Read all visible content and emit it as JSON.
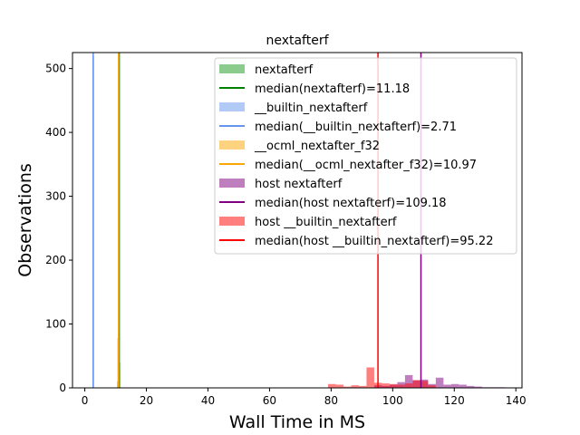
{
  "chart_data": {
    "type": "histogram",
    "title": "nextafterf",
    "xlabel": "Wall Time in MS",
    "ylabel": "Observations",
    "xlim": [
      -4,
      142
    ],
    "ylim": [
      0,
      525
    ],
    "xticks": [
      0,
      20,
      40,
      60,
      80,
      100,
      120,
      140
    ],
    "yticks": [
      0,
      100,
      200,
      300,
      400,
      500
    ],
    "legend_position": "top-right",
    "series": [
      {
        "name": "nextafterf",
        "kind": "hist",
        "color": "#2ca02c",
        "alpha": 0.55,
        "bin_width": 0.5,
        "bins": [
          [
            10.5,
            10
          ],
          [
            11.0,
            40
          ]
        ]
      },
      {
        "name": "median(nextafterf)=11.18",
        "kind": "median",
        "color": "#008000",
        "x": 11.18
      },
      {
        "name": "__builtin_nextafterf",
        "kind": "hist",
        "color": "#6495ed",
        "alpha": 0.5,
        "bin_width": 0.5,
        "bins": [
          [
            2.5,
            520
          ]
        ]
      },
      {
        "name": "median(__builtin_nextafterf)=2.71",
        "kind": "median",
        "color": "#6495ed",
        "x": 2.71
      },
      {
        "name": "__ocml_nextafter_f32",
        "kind": "hist",
        "color": "#ffa500",
        "alpha": 0.5,
        "bin_width": 0.5,
        "bins": [
          [
            10.5,
            78
          ],
          [
            11.0,
            30
          ]
        ]
      },
      {
        "name": "median(__ocml_nextafter_f32)=10.97",
        "kind": "median",
        "color": "#ffa500",
        "x": 10.97
      },
      {
        "name": "host nextafterf",
        "kind": "hist",
        "color": "#800080",
        "alpha": 0.5,
        "bin_width": 2.5,
        "bins": [
          [
            94,
            4
          ],
          [
            96.5,
            3
          ],
          [
            99,
            5
          ],
          [
            101.5,
            9
          ],
          [
            104,
            20
          ],
          [
            106.5,
            12
          ],
          [
            109,
            13
          ],
          [
            111.5,
            6
          ],
          [
            114,
            16
          ],
          [
            116.5,
            5
          ],
          [
            119,
            6
          ],
          [
            121.5,
            5
          ],
          [
            124,
            3
          ],
          [
            126.5,
            2
          ],
          [
            129,
            1
          ],
          [
            131.5,
            1
          ],
          [
            134,
            1
          ]
        ]
      },
      {
        "name": "median(host nextafterf)=109.18",
        "kind": "median",
        "color": "#800080",
        "x": 109.18
      },
      {
        "name": "host __builtin_nextafterf",
        "kind": "hist",
        "color": "#ff0000",
        "alpha": 0.5,
        "bin_width": 2.5,
        "bins": [
          [
            79,
            6
          ],
          [
            81.5,
            5
          ],
          [
            84,
            2
          ],
          [
            86.5,
            4
          ],
          [
            89,
            3
          ],
          [
            91.5,
            32
          ],
          [
            94,
            8
          ],
          [
            96.5,
            7
          ],
          [
            99,
            6
          ],
          [
            101.5,
            5
          ],
          [
            104,
            7
          ],
          [
            106.5,
            12
          ],
          [
            109,
            11
          ],
          [
            111.5,
            4
          ]
        ]
      },
      {
        "name": "median(host __builtin_nextafterf)=95.22",
        "kind": "median",
        "color": "#ff0000",
        "x": 95.22
      }
    ]
  }
}
